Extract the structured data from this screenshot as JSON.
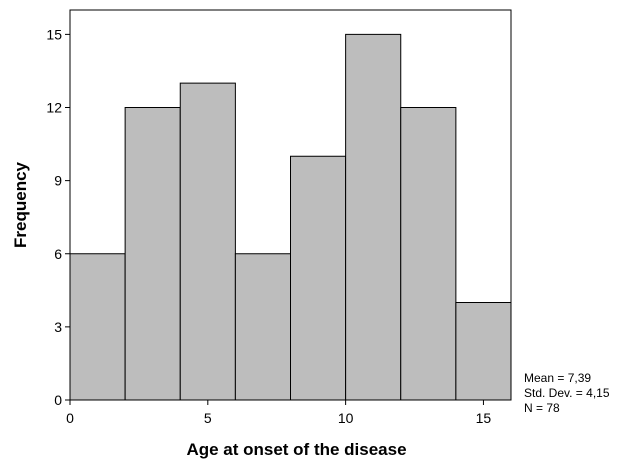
{
  "chart_data": {
    "type": "bar",
    "title": "",
    "xlabel": "Age at onset of the disease",
    "ylabel": "Frequency",
    "bins": [
      {
        "start": 0,
        "end": 2,
        "count": 6
      },
      {
        "start": 2,
        "end": 4,
        "count": 12
      },
      {
        "start": 4,
        "end": 6,
        "count": 13
      },
      {
        "start": 6,
        "end": 8,
        "count": 6
      },
      {
        "start": 8,
        "end": 10,
        "count": 10
      },
      {
        "start": 10,
        "end": 12,
        "count": 15
      },
      {
        "start": 12,
        "end": 14,
        "count": 12
      },
      {
        "start": 14,
        "end": 16,
        "count": 4
      }
    ],
    "xlim": [
      0,
      16
    ],
    "ylim": [
      0,
      16
    ],
    "xticks": [
      "0",
      "5",
      "10",
      "15"
    ],
    "yticks": [
      "0",
      "3",
      "6",
      "9",
      "12",
      "15"
    ],
    "xtick_values": [
      0,
      5,
      10,
      15
    ],
    "ytick_values": [
      0,
      3,
      6,
      9,
      12,
      15
    ],
    "bar_color": "#bdbdbd",
    "grid": false,
    "stats": {
      "mean": "Mean = 7,39",
      "std": "Std. Dev. = 4,15",
      "n": "N = 78"
    }
  }
}
